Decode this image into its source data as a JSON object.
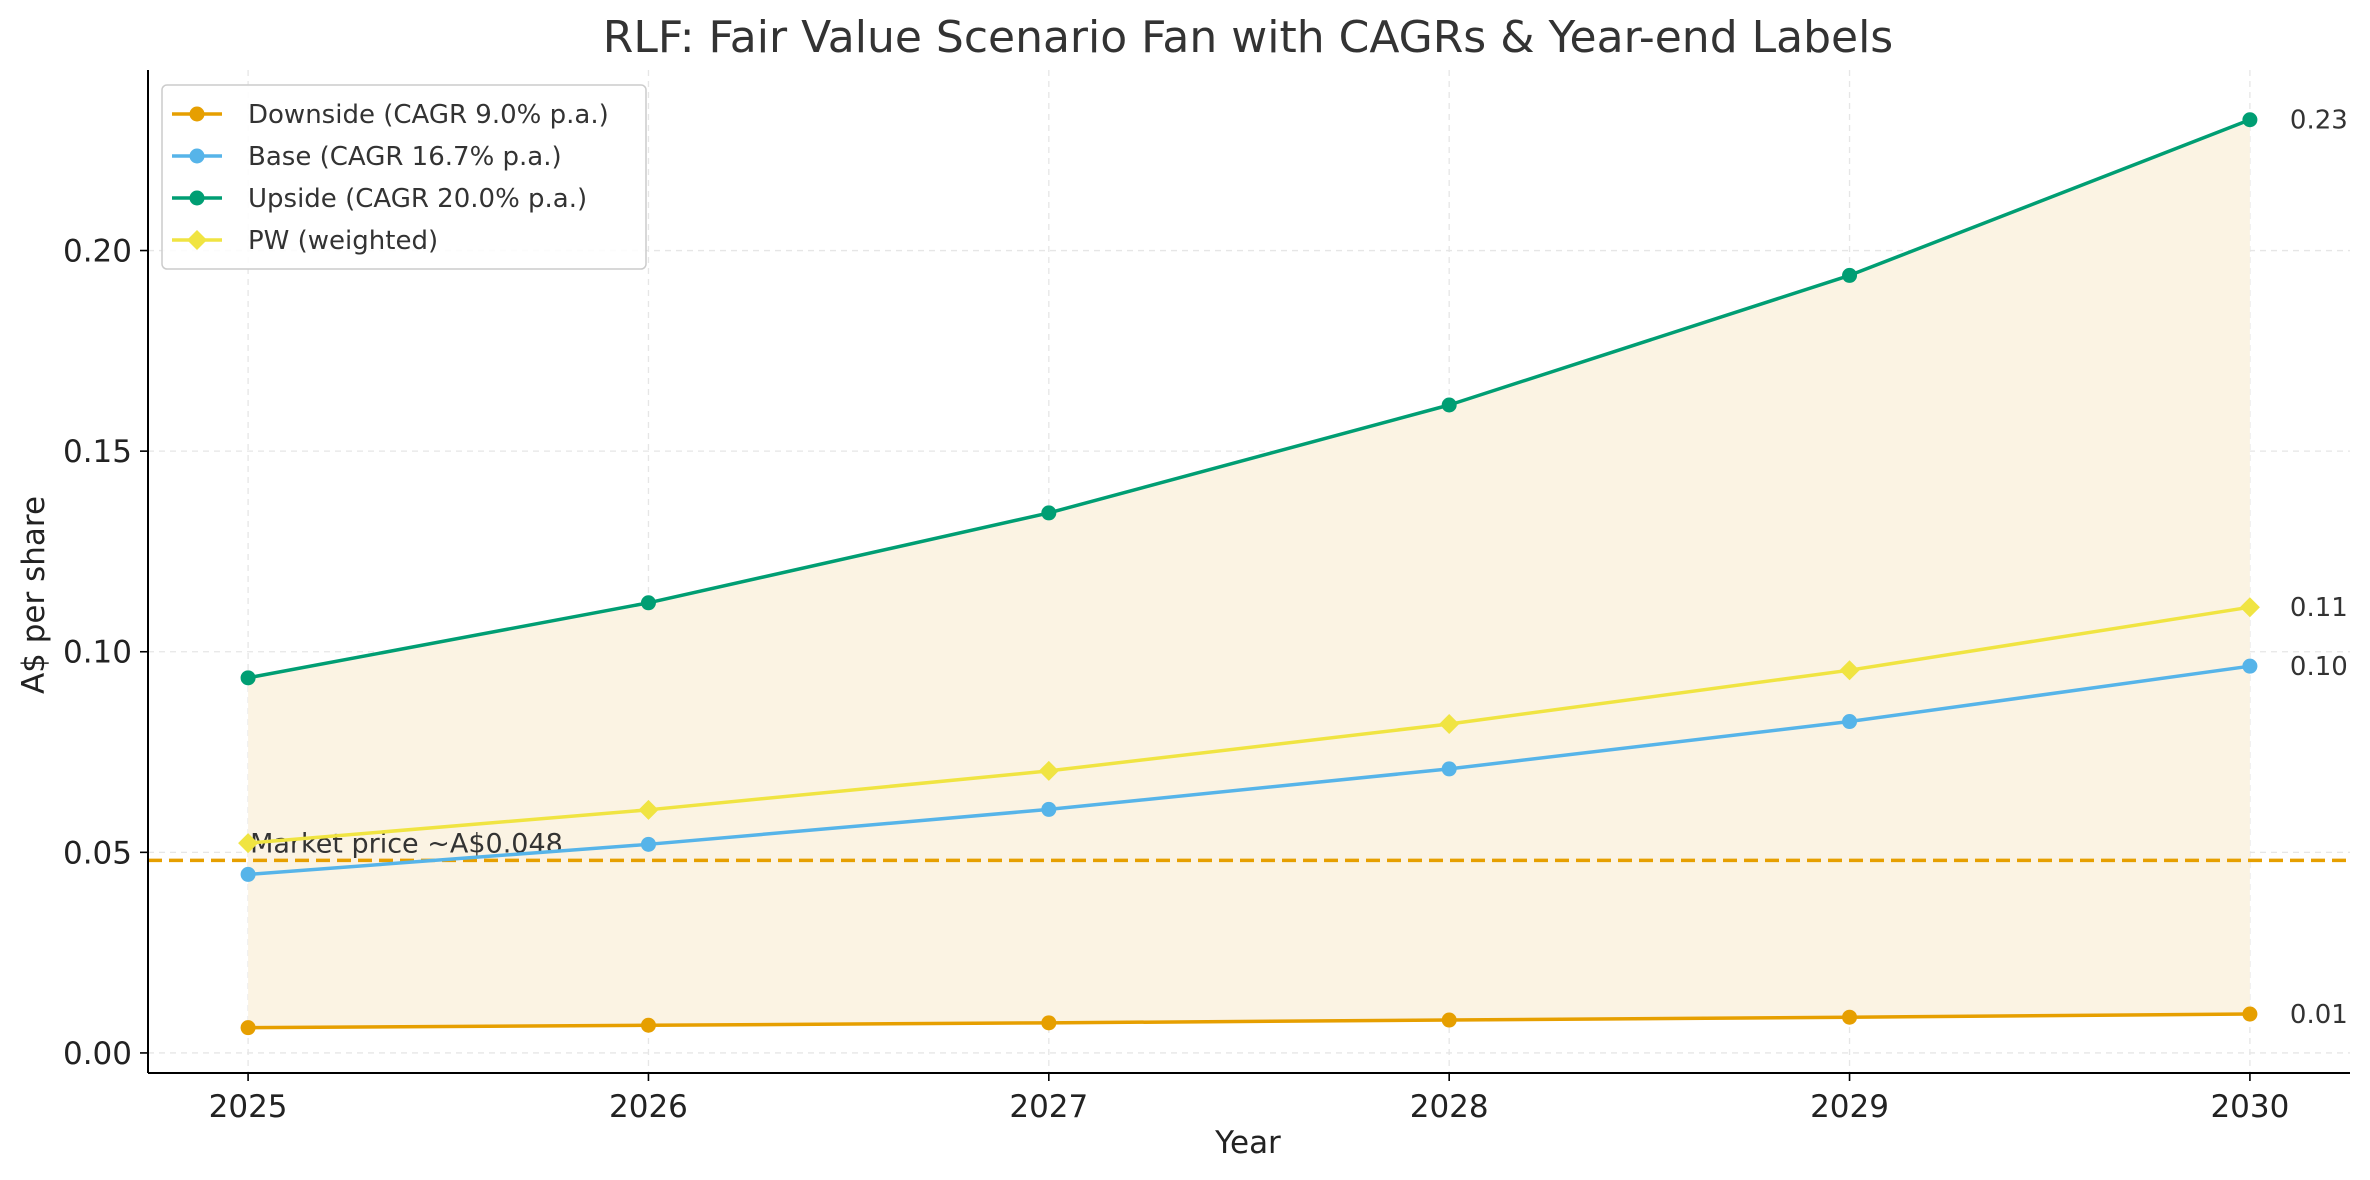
{
  "chart_data": {
    "type": "line",
    "title": "RLF: Fair Value Scenario Fan with CAGRs & Year-end Labels",
    "xlabel": "Year",
    "ylabel": "A$ per share",
    "x": [
      2025,
      2026,
      2027,
      2028,
      2029,
      2030
    ],
    "x_ticks": [
      "2025",
      "2026",
      "2027",
      "2028",
      "2029",
      "2030"
    ],
    "xlim": [
      2024.75,
      2030.25
    ],
    "ylim": [
      -0.005,
      0.245
    ],
    "y_ticks": [
      0.0,
      0.05,
      0.1,
      0.15,
      0.2
    ],
    "y_tick_labels": [
      "0.00",
      "0.05",
      "0.10",
      "0.15",
      "0.20"
    ],
    "grid": true,
    "legend_position": "top-left",
    "fill_between": {
      "lower": "Downside",
      "upper": "Upside",
      "color": "#fbf3e3"
    },
    "series": [
      {
        "name": "Downside (CAGR 9.0% p.a.)",
        "key": "Downside",
        "values": [
          0.0063,
          0.0069,
          0.0075,
          0.0082,
          0.0089,
          0.0097
        ],
        "color": "#e69f00",
        "marker": "circle",
        "end_label": "0.01"
      },
      {
        "name": "Base (CAGR 16.7% p.a.)",
        "key": "Base",
        "values": [
          0.0445,
          0.052,
          0.0607,
          0.0708,
          0.0826,
          0.0964
        ],
        "color": "#56b4e9",
        "marker": "circle",
        "end_label": "0.10"
      },
      {
        "name": "Upside (CAGR 20.0% p.a.)",
        "key": "Upside",
        "values": [
          0.0935,
          0.1122,
          0.1346,
          0.1615,
          0.1938,
          0.2326
        ],
        "color": "#009e73",
        "marker": "circle",
        "end_label": "0.23"
      },
      {
        "name": "PW (weighted)",
        "key": "PW",
        "values": [
          0.0523,
          0.0606,
          0.0703,
          0.082,
          0.0954,
          0.1111
        ],
        "color": "#f0e442",
        "marker": "diamond",
        "end_label": "0.11"
      }
    ],
    "reference_line": {
      "value": 0.048,
      "label": "Market price ~A$0.048",
      "color": "#e69f00",
      "style": "dashed"
    }
  }
}
